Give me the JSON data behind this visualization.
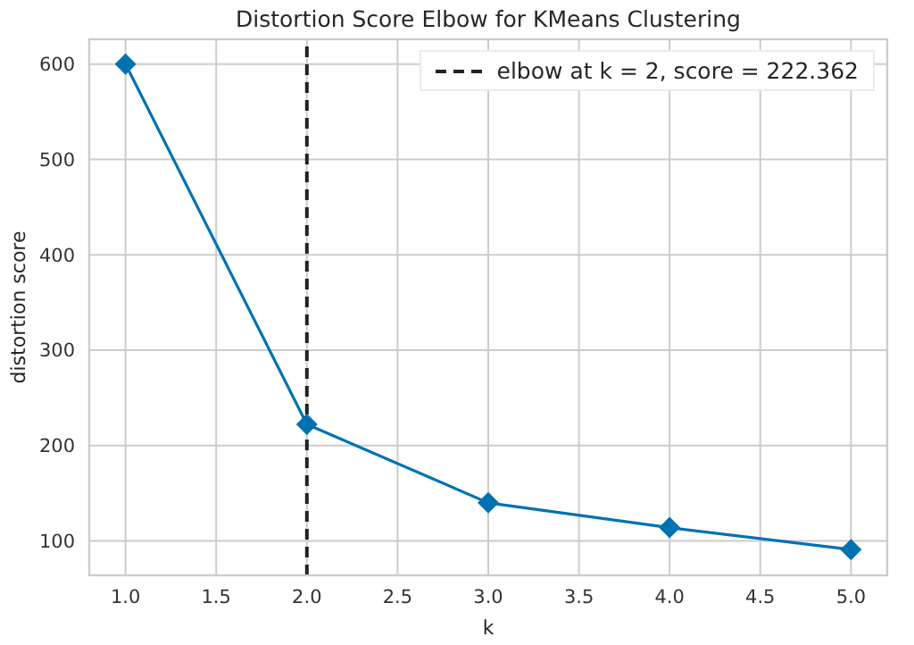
{
  "chart_data": {
    "type": "line",
    "title": "Distortion Score Elbow for KMeans Clustering",
    "xlabel": "k",
    "ylabel": "distortion score",
    "x": [
      1,
      2,
      3,
      4,
      5
    ],
    "series": [
      {
        "color": "#0072b2",
        "values": [
          600,
          222.362,
          140,
          114,
          91
        ]
      }
    ],
    "xlim": [
      0.8,
      5.2
    ],
    "xticks": [
      {
        "value": 1,
        "label": "1.0"
      },
      {
        "value": 1.5,
        "label": "1.5"
      },
      {
        "value": 2,
        "label": "2.0"
      },
      {
        "value": 2.5,
        "label": "2.5"
      },
      {
        "value": 3,
        "label": "3.0"
      },
      {
        "value": 3.5,
        "label": "3.5"
      },
      {
        "value": 4,
        "label": "4.0"
      },
      {
        "value": 4.5,
        "label": "4.5"
      },
      {
        "value": 5,
        "label": "5.0"
      }
    ],
    "ylim": [
      64,
      626
    ],
    "yticks": [
      100,
      200,
      300,
      400,
      500,
      600
    ],
    "ref_lines": [
      {
        "axis": "x",
        "value": 2,
        "label": "elbow at k = 2, score = 222.362",
        "color": "#222222",
        "line_style": "dashed"
      }
    ],
    "grid": true,
    "legend": "top right",
    "marker": "diamond",
    "line_style": "solid"
  }
}
